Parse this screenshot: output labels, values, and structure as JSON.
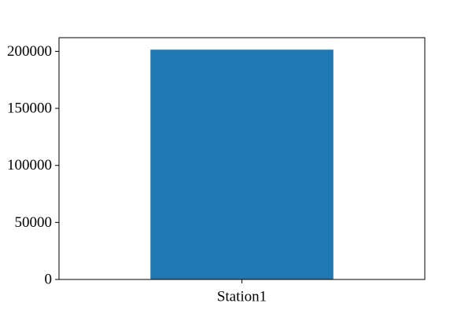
{
  "chart_data": {
    "type": "bar",
    "categories": [
      "Station1"
    ],
    "values": [
      201500
    ],
    "title": "",
    "xlabel": "",
    "ylabel": "",
    "ylim": [
      0,
      212000
    ],
    "yticks": [
      0,
      50000,
      100000,
      150000,
      200000
    ],
    "ytick_labels": [
      "0",
      "50000",
      "100000",
      "150000",
      "200000"
    ],
    "grid": false,
    "bar_color": "#1f77b4",
    "axis_color": "#000000"
  }
}
